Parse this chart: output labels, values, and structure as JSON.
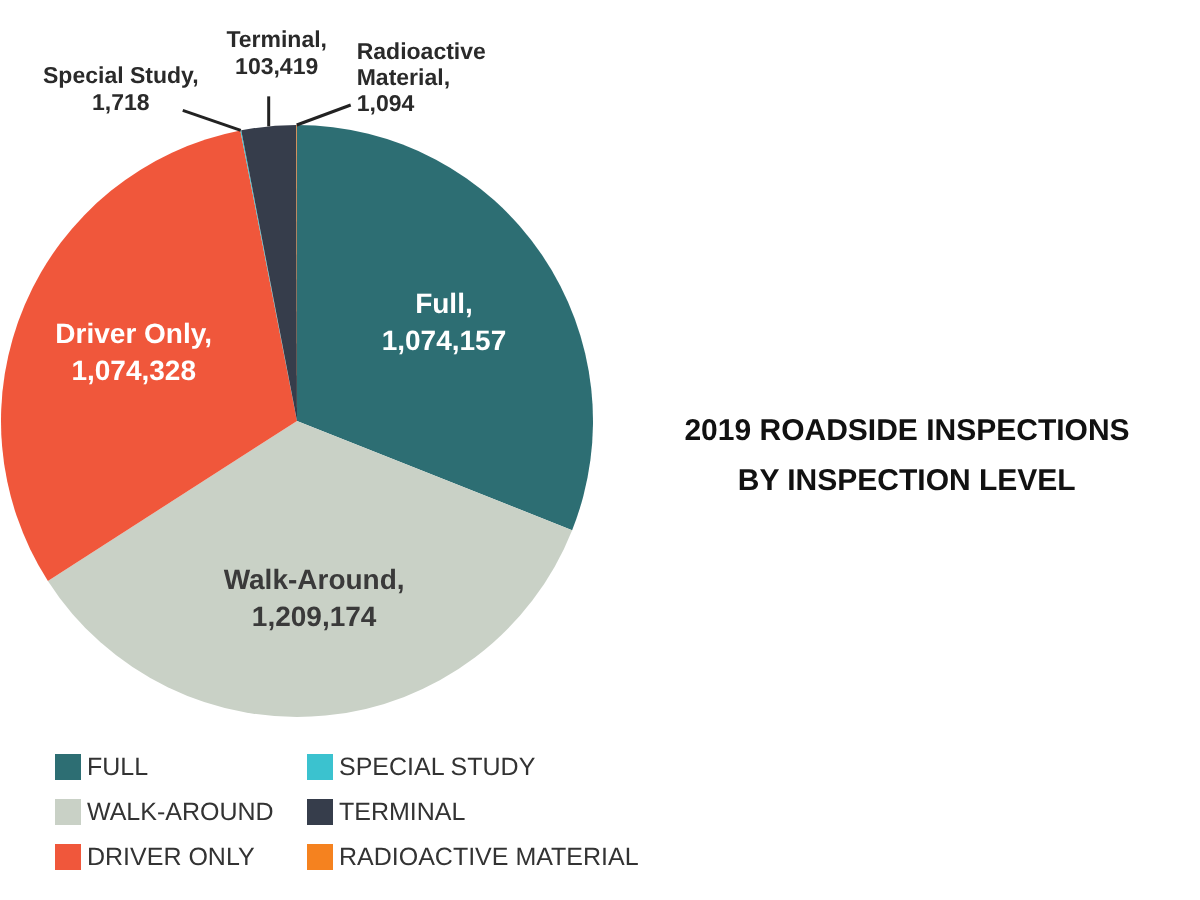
{
  "chart_data": {
    "type": "pie",
    "title": "2019 ROADSIDE INSPECTIONS BY INSPECTION LEVEL",
    "categories": [
      "FULL",
      "WALK-AROUND",
      "DRIVER ONLY",
      "SPECIAL STUDY",
      "TERMINAL",
      "RADIOACTIVE MATERIAL"
    ],
    "values": [
      1074157,
      1209174,
      1074328,
      1718,
      103419,
      1094
    ],
    "colors": [
      "#2d6e73",
      "#c9d1c6",
      "#f0573b",
      "#3bc2cf",
      "#363d4b",
      "#f5821f"
    ],
    "value_labels": [
      "Full, 1,074,157",
      "Walk-Around, 1,209,174",
      "Driver Only, 1,074,328",
      "Special Study, 1,718",
      "Terminal, 103,419",
      "Radioactive Material, 1,094"
    ],
    "legend": "bottom"
  }
}
